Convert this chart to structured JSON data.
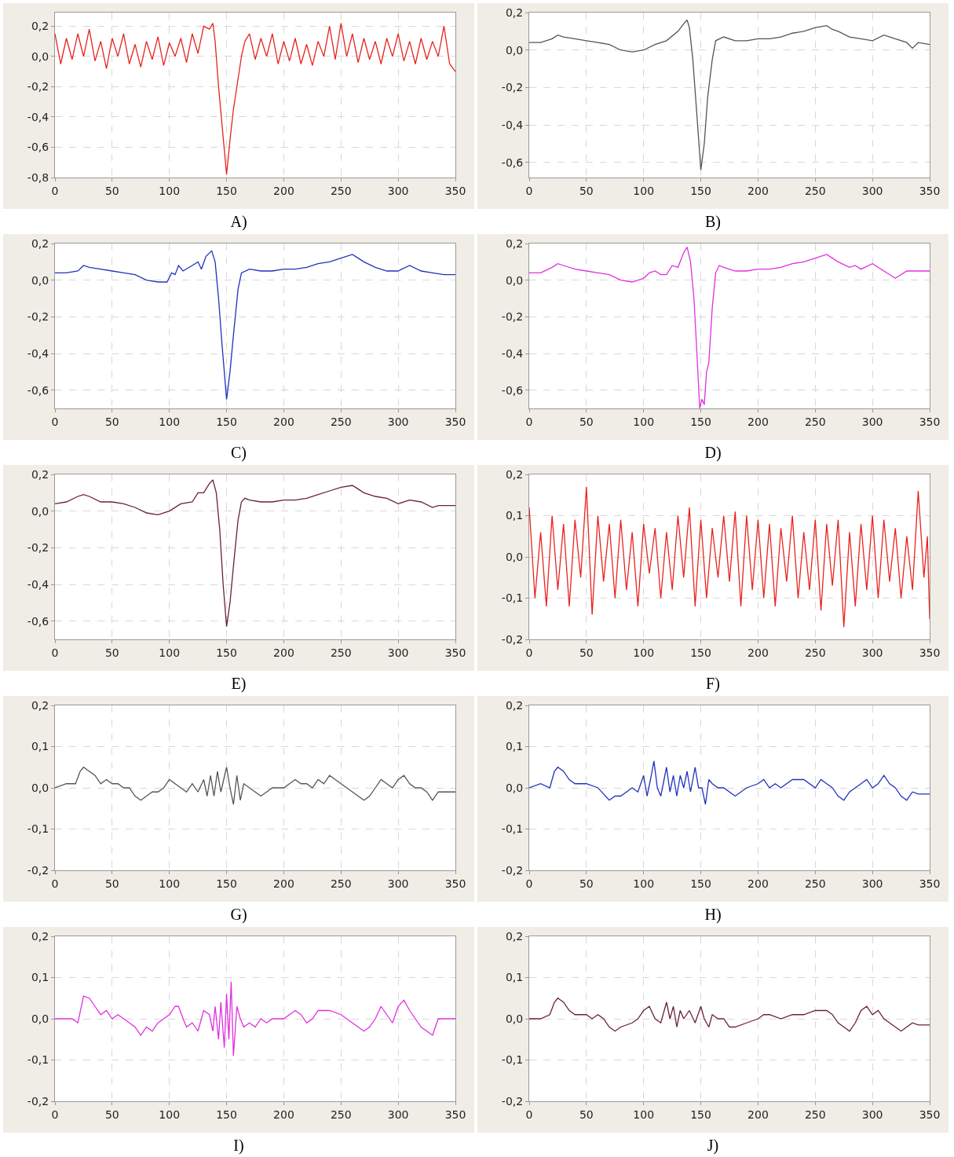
{
  "chart_data": [
    {
      "type": "line",
      "title": "A)",
      "x": [
        0,
        5,
        10,
        15,
        20,
        25,
        30,
        35,
        40,
        45,
        50,
        55,
        60,
        65,
        70,
        75,
        80,
        85,
        90,
        95,
        100,
        105,
        110,
        115,
        120,
        125,
        130,
        135,
        138,
        140,
        143,
        146,
        150,
        153,
        156,
        160,
        163,
        166,
        170,
        175,
        180,
        185,
        190,
        195,
        200,
        205,
        210,
        215,
        220,
        225,
        230,
        235,
        240,
        245,
        250,
        255,
        260,
        265,
        270,
        275,
        280,
        285,
        290,
        295,
        300,
        305,
        310,
        315,
        320,
        325,
        330,
        335,
        340,
        345,
        350
      ],
      "series": [
        {
          "color": "#e8231e",
          "values": [
            0.15,
            -0.05,
            0.12,
            -0.02,
            0.15,
            0.0,
            0.18,
            -0.03,
            0.1,
            -0.08,
            0.12,
            0.0,
            0.15,
            -0.05,
            0.08,
            -0.07,
            0.1,
            -0.02,
            0.13,
            -0.06,
            0.09,
            0.0,
            0.12,
            -0.04,
            0.15,
            0.02,
            0.2,
            0.18,
            0.22,
            0.1,
            -0.2,
            -0.45,
            -0.78,
            -0.55,
            -0.35,
            -0.15,
            0.0,
            0.1,
            0.15,
            -0.02,
            0.12,
            0.0,
            0.15,
            -0.05,
            0.1,
            -0.03,
            0.12,
            -0.05,
            0.08,
            -0.06,
            0.1,
            0.0,
            0.2,
            -0.02,
            0.22,
            0.0,
            0.15,
            -0.04,
            0.12,
            -0.02,
            0.1,
            -0.05,
            0.12,
            0.0,
            0.15,
            -0.03,
            0.1,
            -0.05,
            0.12,
            -0.02,
            0.1,
            0.0,
            0.2,
            -0.05,
            -0.1
          ]
        }
      ],
      "xlim": [
        0,
        350
      ],
      "xticks": [
        0,
        50,
        100,
        150,
        200,
        250,
        300,
        350
      ],
      "ylim": [
        -0.8,
        0.29
      ],
      "yticks": [
        {
          "value": -0.8,
          "label": "-0,8"
        },
        {
          "value": -0.6,
          "label": "-0,6"
        },
        {
          "value": -0.4,
          "label": "-0,4"
        },
        {
          "value": -0.2,
          "label": "-0,2"
        },
        {
          "value": 0,
          "label": "0,0"
        },
        {
          "value": 0.2,
          "label": "0,2"
        }
      ],
      "grid": true
    },
    {
      "type": "line",
      "title": "B)",
      "x": [
        0,
        10,
        20,
        25,
        30,
        40,
        50,
        60,
        70,
        80,
        90,
        100,
        110,
        120,
        130,
        135,
        138,
        140,
        143,
        146,
        150,
        153,
        156,
        160,
        163,
        170,
        180,
        190,
        200,
        210,
        220,
        230,
        240,
        250,
        260,
        265,
        270,
        280,
        290,
        300,
        310,
        320,
        330,
        335,
        340,
        350
      ],
      "series": [
        {
          "color": "#555555",
          "values": [
            0.04,
            0.04,
            0.06,
            0.08,
            0.07,
            0.06,
            0.05,
            0.04,
            0.03,
            0.0,
            -0.01,
            0.0,
            0.03,
            0.05,
            0.1,
            0.14,
            0.16,
            0.12,
            -0.05,
            -0.3,
            -0.64,
            -0.5,
            -0.25,
            -0.05,
            0.05,
            0.07,
            0.05,
            0.05,
            0.06,
            0.06,
            0.07,
            0.09,
            0.1,
            0.12,
            0.13,
            0.11,
            0.1,
            0.07,
            0.06,
            0.05,
            0.08,
            0.06,
            0.04,
            0.01,
            0.04,
            0.03
          ]
        }
      ],
      "xlim": [
        0,
        350
      ],
      "xticks": [
        0,
        50,
        100,
        150,
        200,
        250,
        300,
        350
      ],
      "ylim": [
        -0.68,
        0.2
      ],
      "yticks": [
        {
          "value": -0.6,
          "label": "-0,6"
        },
        {
          "value": -0.4,
          "label": "-0,4"
        },
        {
          "value": -0.2,
          "label": "-0,2"
        },
        {
          "value": 0,
          "label": "0,0"
        },
        {
          "value": 0.2,
          "label": "0,2"
        }
      ],
      "grid": true
    },
    {
      "type": "line",
      "title": "C)",
      "x": [
        0,
        10,
        20,
        25,
        30,
        40,
        50,
        60,
        70,
        80,
        90,
        98,
        102,
        105,
        108,
        112,
        120,
        125,
        128,
        132,
        137,
        140,
        143,
        146,
        150,
        153,
        156,
        160,
        163,
        170,
        180,
        190,
        200,
        210,
        220,
        230,
        240,
        250,
        260,
        265,
        270,
        280,
        290,
        300,
        310,
        320,
        330,
        340,
        350
      ],
      "series": [
        {
          "color": "#2233bb",
          "values": [
            0.04,
            0.04,
            0.05,
            0.08,
            0.07,
            0.06,
            0.05,
            0.04,
            0.03,
            0.0,
            -0.01,
            -0.01,
            0.04,
            0.03,
            0.08,
            0.05,
            0.08,
            0.1,
            0.06,
            0.13,
            0.16,
            0.1,
            -0.1,
            -0.35,
            -0.65,
            -0.5,
            -0.3,
            -0.05,
            0.04,
            0.06,
            0.05,
            0.05,
            0.06,
            0.06,
            0.07,
            0.09,
            0.1,
            0.12,
            0.14,
            0.12,
            0.1,
            0.07,
            0.05,
            0.05,
            0.08,
            0.05,
            0.04,
            0.03,
            0.03
          ]
        }
      ],
      "xlim": [
        0,
        350
      ],
      "xticks": [
        0,
        50,
        100,
        150,
        200,
        250,
        300,
        350
      ],
      "ylim": [
        -0.7,
        0.2
      ],
      "yticks": [
        {
          "value": -0.6,
          "label": "-0,6"
        },
        {
          "value": -0.4,
          "label": "-0,4"
        },
        {
          "value": -0.2,
          "label": "-0,2"
        },
        {
          "value": 0,
          "label": "0,0"
        },
        {
          "value": 0.2,
          "label": "0,2"
        }
      ],
      "grid": true
    },
    {
      "type": "line",
      "title": "D)",
      "x": [
        0,
        10,
        20,
        25,
        30,
        40,
        50,
        60,
        70,
        80,
        90,
        100,
        105,
        110,
        115,
        120,
        125,
        130,
        135,
        138,
        141,
        144,
        147,
        149,
        151,
        153,
        155,
        157,
        160,
        163,
        166,
        170,
        180,
        190,
        200,
        210,
        220,
        230,
        240,
        250,
        260,
        265,
        270,
        280,
        285,
        290,
        300,
        310,
        320,
        330,
        340,
        350
      ],
      "series": [
        {
          "color": "#e030e0",
          "values": [
            0.04,
            0.04,
            0.07,
            0.09,
            0.08,
            0.06,
            0.05,
            0.04,
            0.03,
            0.0,
            -0.01,
            0.01,
            0.04,
            0.05,
            0.03,
            0.03,
            0.08,
            0.07,
            0.15,
            0.18,
            0.1,
            -0.1,
            -0.45,
            -0.7,
            -0.65,
            -0.68,
            -0.5,
            -0.45,
            -0.15,
            0.04,
            0.08,
            0.07,
            0.05,
            0.05,
            0.06,
            0.06,
            0.07,
            0.09,
            0.1,
            0.12,
            0.14,
            0.12,
            0.1,
            0.07,
            0.08,
            0.06,
            0.09,
            0.05,
            0.01,
            0.05,
            0.05,
            0.05
          ]
        }
      ],
      "xlim": [
        0,
        350
      ],
      "xticks": [
        0,
        50,
        100,
        150,
        200,
        250,
        300,
        350
      ],
      "ylim": [
        -0.7,
        0.2
      ],
      "yticks": [
        {
          "value": -0.6,
          "label": "-0,6"
        },
        {
          "value": -0.4,
          "label": "-0,4"
        },
        {
          "value": -0.2,
          "label": "-0,2"
        },
        {
          "value": 0,
          "label": "0,0"
        },
        {
          "value": 0.2,
          "label": "0,2"
        }
      ],
      "grid": true
    },
    {
      "type": "line",
      "title": "E)",
      "x": [
        0,
        10,
        20,
        25,
        30,
        40,
        50,
        60,
        70,
        80,
        90,
        100,
        110,
        120,
        125,
        130,
        135,
        138,
        141,
        144,
        147,
        150,
        153,
        156,
        160,
        163,
        166,
        170,
        180,
        190,
        200,
        210,
        220,
        230,
        240,
        250,
        260,
        265,
        270,
        280,
        290,
        300,
        310,
        320,
        330,
        335,
        340,
        350
      ],
      "series": [
        {
          "color": "#6a2040",
          "values": [
            0.04,
            0.05,
            0.08,
            0.09,
            0.08,
            0.05,
            0.05,
            0.04,
            0.02,
            -0.01,
            -0.02,
            0.0,
            0.04,
            0.05,
            0.1,
            0.1,
            0.15,
            0.17,
            0.1,
            -0.1,
            -0.4,
            -0.63,
            -0.5,
            -0.3,
            -0.05,
            0.05,
            0.07,
            0.06,
            0.05,
            0.05,
            0.06,
            0.06,
            0.07,
            0.09,
            0.11,
            0.13,
            0.14,
            0.12,
            0.1,
            0.08,
            0.07,
            0.04,
            0.06,
            0.05,
            0.02,
            0.03,
            0.03,
            0.03
          ]
        }
      ],
      "xlim": [
        0,
        350
      ],
      "xticks": [
        0,
        50,
        100,
        150,
        200,
        250,
        300,
        350
      ],
      "ylim": [
        -0.7,
        0.2
      ],
      "yticks": [
        {
          "value": -0.6,
          "label": "-0,6"
        },
        {
          "value": -0.4,
          "label": "-0,4"
        },
        {
          "value": -0.2,
          "label": "-0,2"
        },
        {
          "value": 0,
          "label": "0,0"
        },
        {
          "value": 0.2,
          "label": "0,2"
        }
      ],
      "grid": true
    },
    {
      "type": "line",
      "title": "F)",
      "x": [
        0,
        5,
        10,
        15,
        20,
        25,
        30,
        35,
        40,
        45,
        50,
        55,
        60,
        65,
        70,
        75,
        80,
        85,
        90,
        95,
        100,
        105,
        110,
        115,
        120,
        125,
        130,
        135,
        140,
        145,
        150,
        155,
        160,
        165,
        170,
        175,
        180,
        185,
        190,
        195,
        200,
        205,
        210,
        215,
        220,
        225,
        230,
        235,
        240,
        245,
        250,
        255,
        260,
        265,
        270,
        275,
        280,
        285,
        290,
        295,
        300,
        305,
        310,
        315,
        320,
        325,
        330,
        335,
        340,
        345,
        348,
        350
      ],
      "series": [
        {
          "color": "#e8231e",
          "values": [
            0.12,
            -0.1,
            0.06,
            -0.12,
            0.1,
            -0.08,
            0.08,
            -0.12,
            0.09,
            -0.05,
            0.17,
            -0.14,
            0.1,
            -0.06,
            0.08,
            -0.1,
            0.09,
            -0.08,
            0.06,
            -0.12,
            0.08,
            -0.04,
            0.07,
            -0.1,
            0.06,
            -0.08,
            0.1,
            -0.05,
            0.12,
            -0.12,
            0.09,
            -0.1,
            0.07,
            -0.05,
            0.1,
            -0.06,
            0.11,
            -0.12,
            0.1,
            -0.08,
            0.09,
            -0.1,
            0.08,
            -0.12,
            0.07,
            -0.06,
            0.1,
            -0.1,
            0.06,
            -0.08,
            0.09,
            -0.13,
            0.08,
            -0.07,
            0.09,
            -0.17,
            0.06,
            -0.12,
            0.08,
            -0.08,
            0.1,
            -0.1,
            0.09,
            -0.06,
            0.07,
            -0.1,
            0.05,
            -0.08,
            0.16,
            -0.05,
            0.05,
            -0.15
          ]
        }
      ],
      "xlim": [
        0,
        350
      ],
      "xticks": [
        0,
        50,
        100,
        150,
        200,
        250,
        300,
        350
      ],
      "ylim": [
        -0.2,
        0.2
      ],
      "yticks": [
        {
          "value": -0.2,
          "label": "-0,2"
        },
        {
          "value": -0.1,
          "label": "-0,1"
        },
        {
          "value": 0,
          "label": "0,0"
        },
        {
          "value": 0.1,
          "label": "0,1"
        },
        {
          "value": 0.2,
          "label": "0,2"
        }
      ],
      "grid": true
    },
    {
      "type": "line",
      "title": "G)",
      "x": [
        0,
        10,
        18,
        22,
        25,
        30,
        35,
        40,
        45,
        50,
        55,
        60,
        65,
        70,
        75,
        80,
        85,
        90,
        95,
        100,
        105,
        110,
        115,
        120,
        125,
        130,
        133,
        136,
        139,
        142,
        145,
        150,
        153,
        156,
        159,
        162,
        165,
        170,
        175,
        180,
        185,
        190,
        200,
        205,
        210,
        215,
        220,
        225,
        230,
        235,
        240,
        245,
        250,
        255,
        260,
        265,
        270,
        275,
        280,
        285,
        290,
        295,
        300,
        305,
        310,
        315,
        320,
        325,
        330,
        335,
        340,
        345,
        350
      ],
      "series": [
        {
          "color": "#555555",
          "values": [
            0.0,
            0.01,
            0.01,
            0.04,
            0.05,
            0.04,
            0.03,
            0.01,
            0.02,
            0.01,
            0.01,
            0.0,
            0.0,
            -0.02,
            -0.03,
            -0.02,
            -0.01,
            -0.01,
            0.0,
            0.02,
            0.01,
            0.0,
            -0.01,
            0.01,
            -0.01,
            0.02,
            -0.02,
            0.03,
            -0.02,
            0.04,
            -0.01,
            0.05,
            0.0,
            -0.04,
            0.03,
            -0.03,
            0.01,
            0.0,
            -0.01,
            -0.02,
            -0.01,
            0.0,
            0.0,
            0.01,
            0.02,
            0.01,
            0.01,
            0.0,
            0.02,
            0.01,
            0.03,
            0.02,
            0.01,
            0.0,
            -0.01,
            -0.02,
            -0.03,
            -0.02,
            0.0,
            0.02,
            0.01,
            0.0,
            0.02,
            0.03,
            0.01,
            0.0,
            0.0,
            -0.01,
            -0.03,
            -0.01,
            -0.01,
            -0.01,
            -0.01
          ]
        }
      ],
      "xlim": [
        0,
        350
      ],
      "xticks": [
        0,
        50,
        100,
        150,
        200,
        250,
        300,
        350
      ],
      "ylim": [
        -0.2,
        0.2
      ],
      "yticks": [
        {
          "value": -0.2,
          "label": "-0,2"
        },
        {
          "value": -0.1,
          "label": "-0,1"
        },
        {
          "value": 0,
          "label": "0,0"
        },
        {
          "value": 0.1,
          "label": "0,1"
        },
        {
          "value": 0.2,
          "label": "0,2"
        }
      ],
      "grid": true
    },
    {
      "type": "line",
      "title": "H)",
      "x": [
        0,
        10,
        18,
        22,
        25,
        30,
        35,
        40,
        50,
        60,
        70,
        75,
        80,
        90,
        95,
        100,
        103,
        106,
        109,
        112,
        115,
        120,
        123,
        126,
        129,
        132,
        135,
        138,
        141,
        145,
        148,
        151,
        154,
        157,
        160,
        165,
        170,
        180,
        190,
        200,
        205,
        210,
        215,
        220,
        230,
        240,
        250,
        255,
        260,
        265,
        270,
        275,
        280,
        285,
        290,
        295,
        300,
        305,
        310,
        315,
        320,
        325,
        330,
        335,
        340,
        350
      ],
      "series": [
        {
          "color": "#2233bb",
          "values": [
            0.0,
            0.01,
            0.0,
            0.04,
            0.05,
            0.04,
            0.02,
            0.01,
            0.01,
            0.0,
            -0.03,
            -0.02,
            -0.02,
            0.0,
            -0.01,
            0.03,
            -0.02,
            0.02,
            0.065,
            0.0,
            -0.02,
            0.05,
            -0.01,
            0.03,
            -0.02,
            0.03,
            0.0,
            0.04,
            -0.01,
            0.05,
            0.0,
            0.0,
            -0.04,
            0.02,
            0.01,
            0.0,
            0.0,
            -0.02,
            0.0,
            0.01,
            0.02,
            0.0,
            0.01,
            0.0,
            0.02,
            0.02,
            0.0,
            0.02,
            0.01,
            0.0,
            -0.02,
            -0.03,
            -0.01,
            0.0,
            0.01,
            0.02,
            0.0,
            0.01,
            0.03,
            0.01,
            0.0,
            -0.02,
            -0.03,
            -0.01,
            -0.015,
            -0.015
          ]
        }
      ],
      "xlim": [
        0,
        350
      ],
      "xticks": [
        0,
        50,
        100,
        150,
        200,
        250,
        300,
        350
      ],
      "ylim": [
        -0.2,
        0.2
      ],
      "yticks": [
        {
          "value": -0.2,
          "label": "-0,2"
        },
        {
          "value": -0.1,
          "label": "-0,1"
        },
        {
          "value": 0,
          "label": "0,0"
        },
        {
          "value": 0.1,
          "label": "0,1"
        },
        {
          "value": 0.2,
          "label": "0,2"
        }
      ],
      "grid": true
    },
    {
      "type": "line",
      "title": "I)",
      "x": [
        0,
        10,
        15,
        20,
        25,
        30,
        35,
        40,
        45,
        50,
        55,
        60,
        65,
        70,
        75,
        80,
        85,
        90,
        95,
        100,
        105,
        108,
        112,
        115,
        120,
        125,
        130,
        135,
        138,
        140,
        143,
        145,
        148,
        150,
        152,
        154,
        156,
        159,
        162,
        165,
        170,
        175,
        180,
        185,
        190,
        200,
        205,
        210,
        215,
        220,
        225,
        230,
        240,
        250,
        255,
        260,
        265,
        270,
        275,
        280,
        285,
        290,
        295,
        300,
        305,
        310,
        315,
        320,
        325,
        330,
        335,
        340,
        350
      ],
      "series": [
        {
          "color": "#e030e0",
          "values": [
            0.0,
            0.0,
            0.0,
            -0.01,
            0.055,
            0.05,
            0.03,
            0.01,
            0.02,
            0.0,
            0.01,
            0.0,
            -0.01,
            -0.02,
            -0.04,
            -0.02,
            -0.03,
            -0.01,
            0.0,
            0.01,
            0.03,
            0.03,
            0.0,
            -0.02,
            -0.01,
            -0.03,
            0.02,
            0.01,
            -0.03,
            0.03,
            -0.05,
            0.04,
            -0.07,
            0.06,
            -0.05,
            0.09,
            -0.09,
            0.03,
            0.0,
            -0.02,
            -0.01,
            -0.02,
            0.0,
            -0.01,
            0.0,
            0.0,
            0.01,
            0.02,
            0.01,
            -0.01,
            0.0,
            0.02,
            0.02,
            0.01,
            0.0,
            -0.01,
            -0.02,
            -0.03,
            -0.02,
            0.0,
            0.03,
            0.01,
            -0.01,
            0.03,
            0.045,
            0.02,
            0.0,
            -0.02,
            -0.03,
            -0.04,
            0.0,
            0.0,
            0.0
          ]
        }
      ],
      "xlim": [
        0,
        350
      ],
      "xticks": [
        0,
        50,
        100,
        150,
        200,
        250,
        300,
        350
      ],
      "ylim": [
        -0.2,
        0.2
      ],
      "yticks": [
        {
          "value": -0.2,
          "label": "-0,2"
        },
        {
          "value": -0.1,
          "label": "-0,1"
        },
        {
          "value": 0,
          "label": "0,0"
        },
        {
          "value": 0.1,
          "label": "0,1"
        },
        {
          "value": 0.2,
          "label": "0,2"
        }
      ],
      "grid": true
    },
    {
      "type": "line",
      "title": "J)",
      "x": [
        0,
        10,
        18,
        22,
        25,
        30,
        35,
        40,
        45,
        50,
        55,
        60,
        65,
        70,
        75,
        80,
        90,
        95,
        100,
        105,
        110,
        115,
        120,
        123,
        126,
        129,
        132,
        135,
        140,
        145,
        150,
        153,
        157,
        160,
        165,
        170,
        175,
        180,
        190,
        200,
        205,
        210,
        220,
        230,
        240,
        250,
        260,
        265,
        270,
        275,
        280,
        285,
        290,
        295,
        300,
        305,
        310,
        315,
        320,
        325,
        330,
        335,
        340,
        350
      ],
      "series": [
        {
          "color": "#6a2040",
          "values": [
            0.0,
            0.0,
            0.01,
            0.04,
            0.05,
            0.04,
            0.02,
            0.01,
            0.01,
            0.01,
            0.0,
            0.01,
            0.0,
            -0.02,
            -0.03,
            -0.02,
            -0.01,
            0.0,
            0.02,
            0.03,
            0.0,
            -0.01,
            0.04,
            0.0,
            0.03,
            -0.02,
            0.02,
            0.0,
            0.02,
            -0.01,
            0.03,
            0.0,
            -0.02,
            0.01,
            0.0,
            0.0,
            -0.02,
            -0.02,
            -0.01,
            0.0,
            0.01,
            0.01,
            0.0,
            0.01,
            0.01,
            0.02,
            0.02,
            0.01,
            -0.01,
            -0.02,
            -0.03,
            -0.01,
            0.02,
            0.03,
            0.01,
            0.02,
            0.0,
            -0.01,
            -0.02,
            -0.03,
            -0.02,
            -0.01,
            -0.015,
            -0.015
          ]
        }
      ],
      "xlim": [
        0,
        350
      ],
      "xticks": [
        0,
        50,
        100,
        150,
        200,
        250,
        300,
        350
      ],
      "ylim": [
        -0.2,
        0.2
      ],
      "yticks": [
        {
          "value": -0.2,
          "label": "-0,2"
        },
        {
          "value": -0.1,
          "label": "-0,1"
        },
        {
          "value": 0,
          "label": "0,0"
        },
        {
          "value": 0.1,
          "label": "0,1"
        },
        {
          "value": 0.2,
          "label": "0,2"
        }
      ],
      "grid": true
    }
  ]
}
